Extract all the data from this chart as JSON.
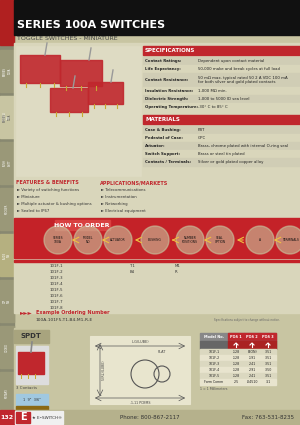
{
  "bg_color": "#c8c5a2",
  "title_bar_color": "#111111",
  "title_text": "SERIES 100A SWITCHES",
  "subtitle_text": "TOGGLE SWITCHES - MINIATURE",
  "title_text_color": "#ffffff",
  "subtitle_text_color": "#444444",
  "red_color": "#c0272d",
  "section_bg": "#d9d6bb",
  "specs_header": "SPECIFICATIONS",
  "specs": [
    [
      "Contact Ratings:",
      "Dependent upon contact material"
    ],
    [
      "Life Expectancy:",
      "50,000 make and break cycles at full load"
    ],
    [
      "Contact Resistance:",
      "50 mΩ max. typical rated 50 2 A VDC 100 mA\nfor both silver and gold plated contacts"
    ],
    [
      "Insulation Resistance:",
      "1,000 MΩ min."
    ],
    [
      "Dielectric Strength:",
      "1,000 to 5000 ID sea level"
    ],
    [
      "Operating Temperature:",
      "-30° C to 85° C"
    ]
  ],
  "materials_header": "MATERIALS",
  "materials": [
    [
      "Case & Bushing:",
      "PBT"
    ],
    [
      "Pedestal of Case:",
      "GPC"
    ],
    [
      "Actuator:",
      "Brass, chrome plated with internal O-ring seal"
    ],
    [
      "Switch Support:",
      "Brass or steel tin plated"
    ],
    [
      "Contacts / Terminals:",
      "Silver or gold plated copper alloy"
    ]
  ],
  "features_header": "FEATURES & BENEFITS",
  "features": [
    "Variety of switching functions",
    "Miniature",
    "Multiple actuator & bushing options",
    "Sealed to IP67"
  ],
  "apps_header": "APPLICATIONS/MARKETS",
  "apps": [
    "Telecommunications",
    "Instrumentation",
    "Networking",
    "Electrical equipment"
  ],
  "how_to_order_text": "HOW TO ORDER",
  "spdt_label": "SPDT",
  "footer_page": "132",
  "footer_phone": "Phone: 800-867-2117",
  "footer_fax": "Fax: 763-531-8235",
  "footer_bg": "#b5b18c",
  "order_labels": [
    "SERIES\n100A",
    "MODEL\nNO.",
    "ACTUATOR",
    "BUSHING",
    "NUMBER\nPOSITIONS",
    "SEAL\nOPTION",
    "A",
    "TERMINALS"
  ],
  "order_model_rows": [
    "101F-1",
    "101F-2",
    "101F-3",
    "101F-4",
    "101F-5",
    "101F-6",
    "101F-7",
    "101F-8"
  ],
  "table_headers": [
    "Model No.",
    "POS 1",
    "POS 2",
    "POS 3"
  ],
  "table_rows": [
    [
      "101F-1",
      ".128",
      "B(ON)",
      ".351"
    ],
    [
      "101F-2",
      ".128",
      ".191",
      ".351"
    ],
    [
      "101F-3",
      ".128",
      ".241",
      ".351"
    ],
    [
      "101F-4",
      ".128",
      ".291",
      ".350"
    ],
    [
      "101F-5",
      ".128",
      ".241",
      ".351"
    ],
    [
      "Form Comm",
      "2.5",
      ".04510",
      "3-1"
    ]
  ],
  "example_order": "100A-101F5-T1-B4-M1-R-E",
  "left_tabs": [
    "SERIES 100A\nSWITCHES",
    "TOGGLE\nSWITCHES",
    "PUSH\nBUTTON",
    "ROCKER\nSWITCHES",
    "SLIDE\nSWITCHES",
    "DIP\nSWITCHES",
    "CODED\nSWITCHES",
    "ROTARY\nSWITCHES"
  ],
  "side_tab_color": "#a8a47e"
}
